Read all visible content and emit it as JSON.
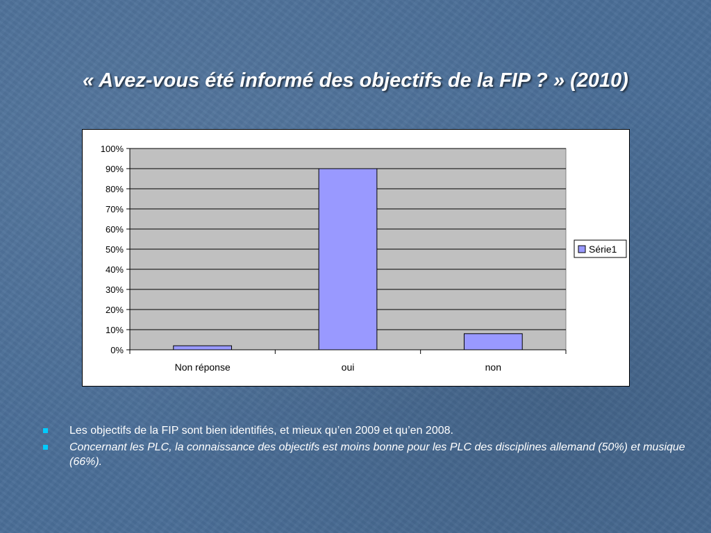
{
  "slide": {
    "title": "« Avez-vous été informé des objectifs de la FIP ? » (2010)"
  },
  "chart_data": {
    "type": "bar",
    "categories": [
      "Non réponse",
      "oui",
      "non"
    ],
    "series": [
      {
        "name": "Série1",
        "values": [
          2,
          90,
          8
        ],
        "color": "#9999ff"
      }
    ],
    "ylim": [
      0,
      100
    ],
    "yticks": [
      "0%",
      "10%",
      "20%",
      "30%",
      "40%",
      "50%",
      "60%",
      "70%",
      "80%",
      "90%",
      "100%"
    ],
    "plot_background": "#c0c0c0",
    "grid": true,
    "legend_position": "right"
  },
  "bullets": [
    {
      "text": "Les objectifs de la FIP sont bien identifiés, et mieux qu’en 2009  et qu’en 2008."
    },
    {
      "text": "Concernant les PLC, la connaissance des objectifs est moins bonne pour les PLC  des disciplines allemand  (50%) et musique (66%)."
    }
  ],
  "colors": {
    "background": "#4a6e97",
    "bullet": "#00ccff",
    "bar": "#9999ff"
  }
}
